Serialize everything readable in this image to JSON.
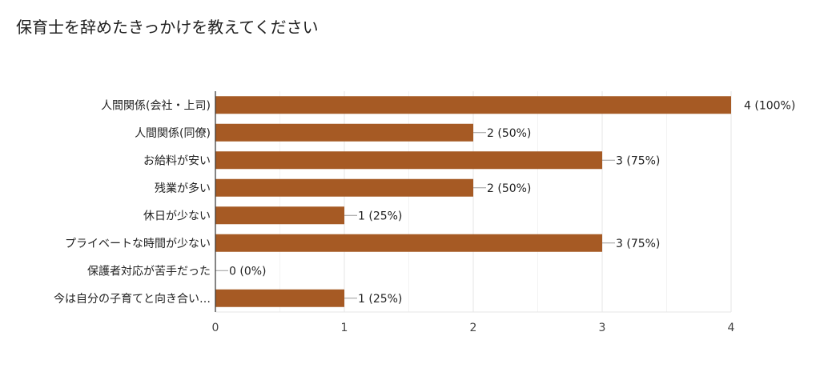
{
  "chart_data": {
    "type": "bar",
    "orientation": "horizontal",
    "title": "保育士を辞めたきっかけを教えてください",
    "categories": [
      "人間関係(会社・上司)",
      "人間関係(同僚)",
      "お給料が安い",
      "残業が多い",
      "休日が少ない",
      "プライベートな時間が少ない",
      "保護者対応が苦手だった",
      "今は自分の子育てと向き合い…"
    ],
    "values": [
      4,
      2,
      3,
      2,
      1,
      3,
      0,
      1
    ],
    "data_labels": [
      "4 (100%)",
      "2 (50%)",
      "3 (75%)",
      "2 (50%)",
      "1 (25%)",
      "3 (75%)",
      "0 (0%)",
      "1 (25%)"
    ],
    "xlim": [
      0,
      4
    ],
    "xticks": [
      "0",
      "1",
      "2",
      "3",
      "4"
    ],
    "grid": true,
    "bar_color": "#a65a24"
  }
}
